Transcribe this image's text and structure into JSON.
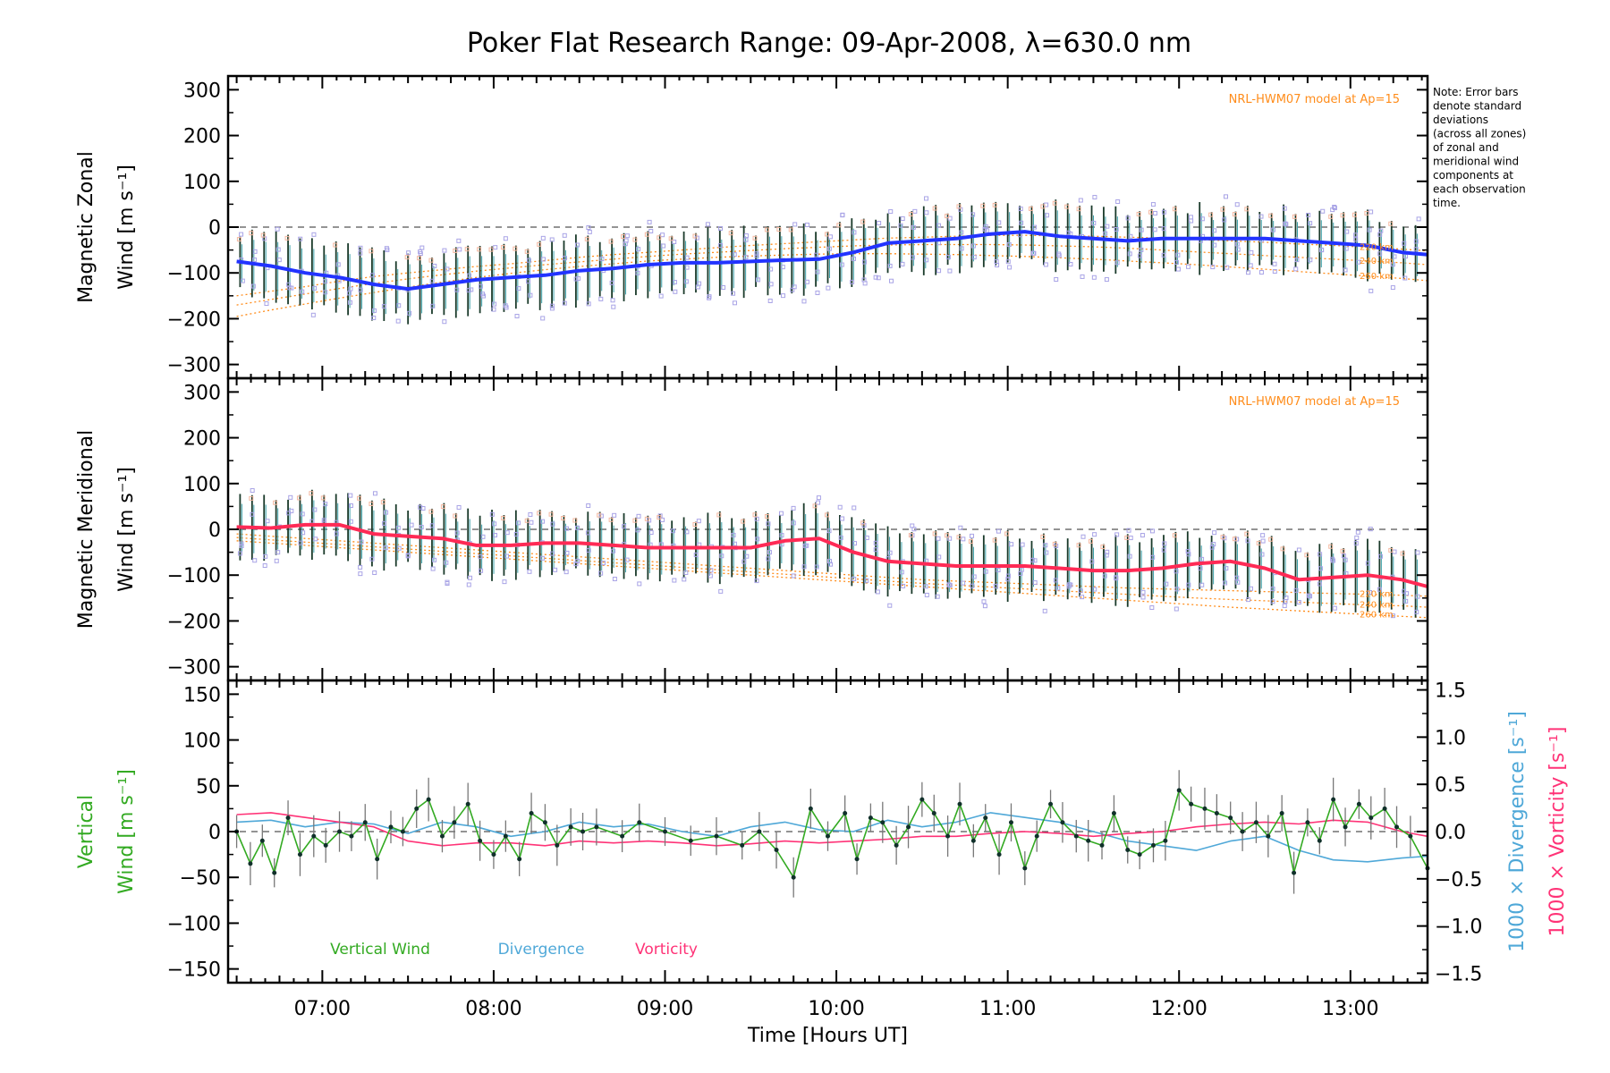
{
  "title": "Poker Flat Research Range: 09-Apr-2008, λ=630.0 nm",
  "note": [
    "Note: Error bars",
    "denote standard",
    "deviations",
    "(across all zones)",
    "of zonal and",
    "meridional wind",
    "components at",
    "each observation",
    "time."
  ],
  "colors": {
    "zonal": "#2233ff",
    "meridional": "#ff2a55",
    "vertical": "#33aa22",
    "divergence": "#4fa8d8",
    "vorticity": "#ff3377",
    "model": "#ff8c1a",
    "scatter": "#a9a4e6",
    "errorbar": "#1a3a2a"
  },
  "chart_data": [
    {
      "panel": "zonal",
      "type": "line",
      "ylabel_lines": [
        "Magnetic Zonal",
        "Wind [m s⁻¹]"
      ],
      "ylim": [
        -330,
        330
      ],
      "yticks": [
        "300",
        "200",
        "100",
        "0",
        "−100",
        "−200",
        "−300"
      ],
      "model_label": "NRL-HWM07 model at Ap=15",
      "model_altitudes": [
        "220 km",
        "240 km",
        "260 km"
      ],
      "x": [
        6.5,
        6.7,
        6.9,
        7.1,
        7.3,
        7.5,
        7.7,
        7.9,
        8.1,
        8.3,
        8.5,
        8.7,
        8.9,
        9.1,
        9.3,
        9.5,
        9.7,
        9.9,
        10.1,
        10.3,
        10.5,
        10.7,
        10.9,
        11.1,
        11.3,
        11.5,
        11.7,
        11.9,
        12.1,
        12.3,
        12.5,
        12.7,
        12.9,
        13.1,
        13.3,
        13.45
      ],
      "series": [
        {
          "name": "Zonal wind",
          "values": [
            -75,
            -85,
            -100,
            -110,
            -125,
            -135,
            -125,
            -115,
            -110,
            -105,
            -95,
            -90,
            -82,
            -78,
            -78,
            -75,
            -72,
            -70,
            -55,
            -35,
            -30,
            -25,
            -15,
            -10,
            -20,
            -25,
            -30,
            -25,
            -25,
            -25,
            -25,
            -30,
            -35,
            -40,
            -55,
            -60
          ]
        },
        {
          "name": "220 km",
          "values": [
            -150,
            -140,
            -130,
            -118,
            -108,
            -100,
            -93,
            -86,
            -80,
            -73,
            -66,
            -60,
            -55,
            -50,
            -45,
            -40,
            -36,
            -32,
            -28,
            -24,
            -22,
            -20,
            -18,
            -18,
            -19,
            -20,
            -22,
            -24,
            -27,
            -30,
            -33,
            -37,
            -40,
            -44,
            -48,
            -52
          ]
        },
        {
          "name": "240 km",
          "values": [
            -170,
            -158,
            -146,
            -134,
            -123,
            -113,
            -104,
            -96,
            -89,
            -82,
            -76,
            -70,
            -64,
            -59,
            -55,
            -51,
            -47,
            -44,
            -41,
            -39,
            -38,
            -38,
            -38,
            -39,
            -41,
            -43,
            -46,
            -50,
            -54,
            -58,
            -62,
            -66,
            -70,
            -74,
            -78,
            -82
          ]
        },
        {
          "name": "260 km",
          "values": [
            -195,
            -181,
            -168,
            -155,
            -143,
            -131,
            -120,
            -110,
            -101,
            -93,
            -86,
            -80,
            -74,
            -70,
            -66,
            -63,
            -61,
            -59,
            -58,
            -58,
            -59,
            -60,
            -62,
            -64,
            -67,
            -70,
            -74,
            -78,
            -82,
            -87,
            -92,
            -97,
            -102,
            -107,
            -112,
            -117
          ]
        }
      ]
    },
    {
      "panel": "meridional",
      "type": "line",
      "ylabel_lines": [
        "Magnetic Meridional",
        "Wind [m s⁻¹]"
      ],
      "ylim": [
        -330,
        330
      ],
      "yticks": [
        "300",
        "200",
        "100",
        "0",
        "−100",
        "−200",
        "−300"
      ],
      "model_label": "NRL-HWM07 model at Ap=15",
      "model_altitudes": [
        "220 km",
        "240 km",
        "260 km"
      ],
      "x": [
        6.5,
        6.7,
        6.9,
        7.1,
        7.3,
        7.5,
        7.7,
        7.9,
        8.1,
        8.3,
        8.5,
        8.7,
        8.9,
        9.1,
        9.3,
        9.5,
        9.7,
        9.9,
        10.1,
        10.3,
        10.5,
        10.7,
        10.9,
        11.1,
        11.3,
        11.5,
        11.7,
        11.9,
        12.1,
        12.3,
        12.5,
        12.7,
        12.9,
        13.1,
        13.3,
        13.45
      ],
      "series": [
        {
          "name": "Meridional wind",
          "values": [
            5,
            3,
            10,
            10,
            -10,
            -15,
            -20,
            -35,
            -35,
            -30,
            -30,
            -35,
            -40,
            -40,
            -40,
            -40,
            -25,
            -20,
            -50,
            -70,
            -75,
            -80,
            -80,
            -80,
            -85,
            -90,
            -90,
            -85,
            -75,
            -70,
            -85,
            -110,
            -105,
            -100,
            -110,
            -125
          ]
        },
        {
          "name": "220 km",
          "values": [
            -10,
            -15,
            -20,
            -25,
            -30,
            -35,
            -40,
            -45,
            -50,
            -55,
            -60,
            -65,
            -70,
            -75,
            -80,
            -85,
            -90,
            -95,
            -100,
            -105,
            -110,
            -113,
            -116,
            -119,
            -122,
            -125,
            -128,
            -130,
            -132,
            -134,
            -136,
            -138,
            -140,
            -142,
            -144,
            -146
          ]
        },
        {
          "name": "240 km",
          "values": [
            -18,
            -23,
            -28,
            -33,
            -38,
            -43,
            -48,
            -53,
            -58,
            -63,
            -68,
            -73,
            -78,
            -83,
            -88,
            -93,
            -98,
            -103,
            -108,
            -113,
            -118,
            -122,
            -126,
            -130,
            -134,
            -138,
            -142,
            -146,
            -150,
            -153,
            -156,
            -159,
            -162,
            -165,
            -167,
            -170
          ]
        },
        {
          "name": "260 km",
          "values": [
            -25,
            -30,
            -35,
            -40,
            -45,
            -50,
            -55,
            -60,
            -65,
            -70,
            -75,
            -80,
            -85,
            -90,
            -95,
            -100,
            -105,
            -110,
            -115,
            -120,
            -125,
            -130,
            -135,
            -140,
            -145,
            -150,
            -155,
            -160,
            -165,
            -170,
            -174,
            -178,
            -182,
            -186,
            -190,
            -193
          ]
        }
      ]
    },
    {
      "panel": "vertical",
      "type": "line",
      "ylabel_lines": [
        "Vertical",
        "Wind [m s⁻¹]"
      ],
      "ylabel_right": [
        "1000 × Divergence [s⁻¹]",
        "1000 × Vorticity [s⁻¹]"
      ],
      "ylim": [
        -165,
        165
      ],
      "ylim_right": [
        -1.6,
        1.6
      ],
      "yticks": [
        "150",
        "100",
        "50",
        "0",
        "−50",
        "−100",
        "−150"
      ],
      "yticks_right": [
        "1.5",
        "1.0",
        "0.5",
        "0.0",
        "−0.5",
        "−1.0",
        "−1.5"
      ],
      "xlabel": "Time [Hours UT]",
      "xticks": [
        "07:00",
        "08:00",
        "09:00",
        "10:00",
        "11:00",
        "12:00",
        "13:00"
      ],
      "xlim": [
        6.45,
        13.45
      ],
      "legend": [
        "Vertical Wind",
        "Divergence",
        "Vorticity"
      ],
      "series": [
        {
          "name": "Vertical Wind",
          "x": [
            6.5,
            6.58,
            6.65,
            6.72,
            6.8,
            6.87,
            6.95,
            7.02,
            7.1,
            7.17,
            7.25,
            7.32,
            7.4,
            7.47,
            7.55,
            7.62,
            7.7,
            7.77,
            7.85,
            7.92,
            8.0,
            8.07,
            8.15,
            8.22,
            8.3,
            8.37,
            8.45,
            8.52,
            8.6,
            8.75,
            8.85,
            9.0,
            9.15,
            9.3,
            9.45,
            9.55,
            9.65,
            9.75,
            9.85,
            9.95,
            10.05,
            10.12,
            10.2,
            10.27,
            10.35,
            10.42,
            10.5,
            10.57,
            10.65,
            10.72,
            10.8,
            10.87,
            10.95,
            11.02,
            11.1,
            11.17,
            11.25,
            11.32,
            11.4,
            11.47,
            11.55,
            11.62,
            11.7,
            11.77,
            11.85,
            11.92,
            12.0,
            12.07,
            12.15,
            12.22,
            12.3,
            12.37,
            12.45,
            12.52,
            12.6,
            12.67,
            12.75,
            12.82,
            12.9,
            12.97,
            13.05,
            13.12,
            13.2,
            13.27,
            13.35,
            13.45
          ],
          "values": [
            0,
            -35,
            -10,
            -45,
            15,
            -25,
            -5,
            -15,
            0,
            -5,
            10,
            -30,
            5,
            0,
            25,
            35,
            -5,
            10,
            30,
            -10,
            -25,
            -5,
            -30,
            20,
            10,
            -15,
            5,
            0,
            5,
            -5,
            10,
            0,
            -10,
            -5,
            -15,
            0,
            -20,
            -50,
            25,
            -5,
            20,
            -30,
            15,
            10,
            -15,
            5,
            35,
            20,
            -5,
            30,
            -10,
            15,
            -25,
            10,
            -40,
            -5,
            30,
            10,
            -5,
            -10,
            -15,
            20,
            -20,
            -25,
            -15,
            -10,
            45,
            30,
            25,
            20,
            15,
            0,
            10,
            -5,
            20,
            -45,
            10,
            -10,
            35,
            5,
            30,
            15,
            25,
            5,
            -5,
            -40
          ]
        },
        {
          "name": "Divergence",
          "x": [
            6.5,
            6.7,
            6.9,
            7.1,
            7.3,
            7.5,
            7.7,
            7.9,
            8.1,
            8.3,
            8.5,
            8.7,
            8.9,
            9.1,
            9.3,
            9.5,
            9.7,
            9.9,
            10.1,
            10.3,
            10.5,
            10.7,
            10.9,
            11.1,
            11.3,
            11.5,
            11.7,
            11.9,
            12.1,
            12.3,
            12.5,
            12.7,
            12.9,
            13.1,
            13.3,
            13.45
          ],
          "values": [
            0.1,
            0.12,
            0.05,
            0.1,
            0.08,
            -0.02,
            0.1,
            0.05,
            -0.05,
            0.0,
            0.1,
            0.05,
            0.08,
            0.0,
            -0.05,
            0.05,
            0.1,
            0.02,
            0.0,
            0.12,
            0.05,
            0.1,
            0.2,
            0.15,
            0.1,
            0.0,
            -0.1,
            -0.15,
            -0.2,
            -0.1,
            -0.05,
            -0.2,
            -0.3,
            -0.32,
            -0.28,
            -0.26
          ]
        },
        {
          "name": "Vorticity",
          "x": [
            6.5,
            6.7,
            6.9,
            7.1,
            7.3,
            7.5,
            7.7,
            7.9,
            8.1,
            8.3,
            8.5,
            8.7,
            8.9,
            9.1,
            9.3,
            9.5,
            9.7,
            9.9,
            10.1,
            10.3,
            10.5,
            10.7,
            10.9,
            11.1,
            11.3,
            11.5,
            11.7,
            11.9,
            12.1,
            12.3,
            12.5,
            12.7,
            12.9,
            13.1,
            13.3,
            13.45
          ],
          "values": [
            0.18,
            0.2,
            0.15,
            0.1,
            0.05,
            -0.1,
            -0.15,
            -0.12,
            -0.12,
            -0.15,
            -0.1,
            -0.12,
            -0.1,
            -0.12,
            -0.15,
            -0.13,
            -0.1,
            -0.12,
            -0.1,
            -0.08,
            -0.05,
            -0.05,
            -0.02,
            0.0,
            -0.02,
            -0.05,
            -0.02,
            0.0,
            0.05,
            0.08,
            0.1,
            0.08,
            0.12,
            0.1,
            0.0,
            -0.05
          ]
        }
      ]
    }
  ]
}
